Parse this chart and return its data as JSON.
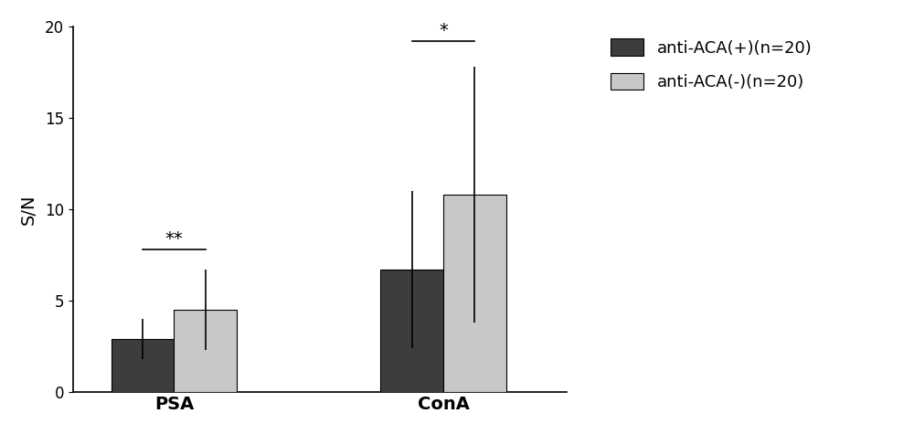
{
  "groups": [
    "PSA",
    "ConA"
  ],
  "series": [
    {
      "label": "anti-ACA(+)(n=20)",
      "color": "#3d3d3d",
      "means": [
        2.9,
        6.7
      ],
      "errors": [
        1.1,
        4.3
      ]
    },
    {
      "label": "anti-ACA(-)(n=20)",
      "color": "#c8c8c8",
      "means": [
        4.5,
        10.8
      ],
      "errors": [
        2.2,
        7.0
      ]
    }
  ],
  "ylabel": "S/N",
  "ylim": [
    0,
    20
  ],
  "yticks": [
    0,
    5,
    10,
    15,
    20
  ],
  "bar_width": 0.28,
  "group_centers": [
    1.0,
    2.2
  ],
  "sig_psa": {
    "label": "**",
    "y": 7.8
  },
  "sig_cona": {
    "label": "*",
    "y": 19.2
  },
  "background_color": "#ffffff",
  "label_fontsize": 13,
  "tick_fontsize": 12,
  "legend_fontsize": 13,
  "sig_fontsize": 14
}
